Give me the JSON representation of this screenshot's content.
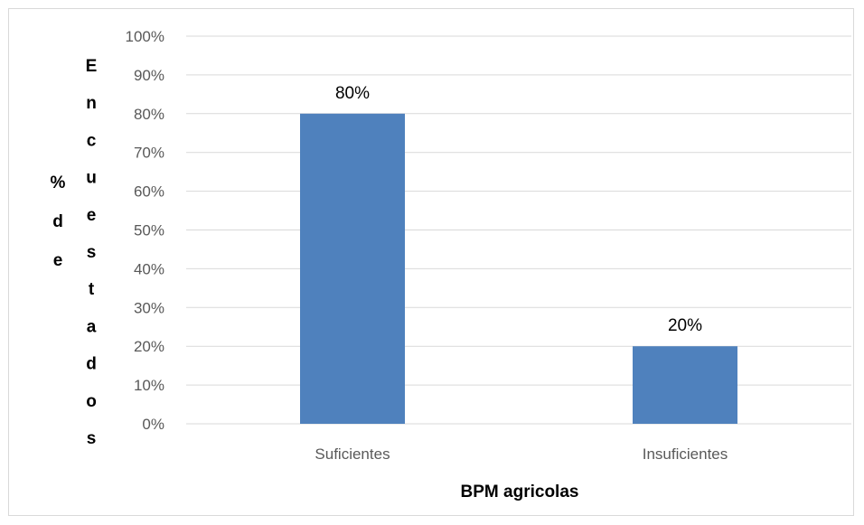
{
  "chart_data": {
    "type": "bar",
    "categories": [
      "Suficientes",
      "Insuficientes"
    ],
    "values": [
      80,
      20
    ],
    "data_labels": [
      "80%",
      "20%"
    ],
    "value_format": "percent",
    "ylim": [
      0,
      100
    ],
    "y_ticks": [
      "0%",
      "10%",
      "20%",
      "30%",
      "40%",
      "50%",
      "60%",
      "70%",
      "80%",
      "90%",
      "100%"
    ],
    "xlabel": "BPM agricolas",
    "ylabel_left": "% de",
    "ylabel_right": "Encuestados",
    "grid": true,
    "bar_color": "#4f81bd",
    "grid_color": "#d9d9d9"
  }
}
